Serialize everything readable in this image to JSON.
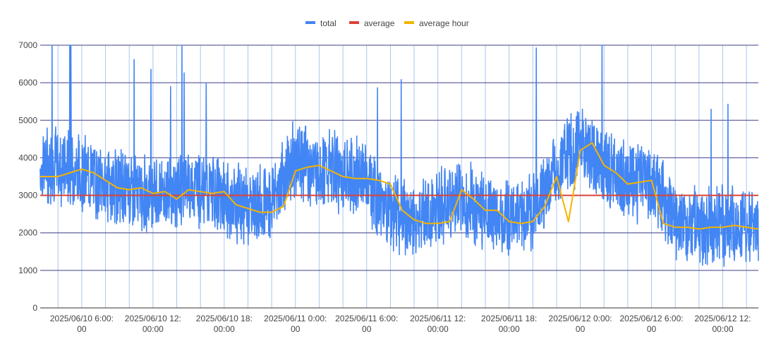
{
  "chart_data": {
    "type": "line",
    "title": "",
    "xlabel": "",
    "ylabel": "",
    "x_range": [
      "2025/06/10 02:30",
      "2025/06/12 15:00"
    ],
    "ylim": [
      0,
      7000
    ],
    "y_ticks": [
      0,
      1000,
      2000,
      3000,
      4000,
      5000,
      6000,
      7000
    ],
    "x_ticks": [
      {
        "at": "2025/06/10 06:00",
        "line1": "2025/06/10 6:00:",
        "line2": "00"
      },
      {
        "at": "2025/06/10 12:00",
        "line1": "2025/06/10 12:",
        "line2": "00:00"
      },
      {
        "at": "2025/06/10 18:00",
        "line1": "2025/06/10 18:",
        "line2": "00:00"
      },
      {
        "at": "2025/06/11 00:00",
        "line1": "2025/06/11 0:00:",
        "line2": "00"
      },
      {
        "at": "2025/06/11 06:00",
        "line1": "2025/06/11 6:00:",
        "line2": "00"
      },
      {
        "at": "2025/06/11 12:00",
        "line1": "2025/06/11 12:",
        "line2": "00:00"
      },
      {
        "at": "2025/06/11 18:00",
        "line1": "2025/06/11 18:",
        "line2": "00:00"
      },
      {
        "at": "2025/06/12 00:00",
        "line1": "2025/06/12 0:00:",
        "line2": "00"
      },
      {
        "at": "2025/06/12 06:00",
        "line1": "2025/06/12 6:00:",
        "line2": "00"
      },
      {
        "at": "2025/06/12 12:00",
        "line1": "2025/06/12 12:",
        "line2": "00:00"
      }
    ],
    "grid": true,
    "legend_position": "top",
    "legend": [
      {
        "name": "total",
        "color": "#4285f4"
      },
      {
        "name": "average",
        "color": "#db4437"
      },
      {
        "name": "average hour",
        "color": "#f4b400"
      }
    ],
    "series": [
      {
        "name": "total",
        "color": "#4285f4",
        "description_values": "noisy, roughly ±900 around the hourly average, with occasional spikes",
        "x": [
          "2025/06/10 02:30",
          "2025/06/10 04:00",
          "2025/06/10 06:00",
          "2025/06/10 08:00",
          "2025/06/10 10:00",
          "2025/06/10 12:00",
          "2025/06/10 14:00",
          "2025/06/10 16:00",
          "2025/06/10 18:00",
          "2025/06/10 20:00",
          "2025/06/10 22:00",
          "2025/06/11 00:00",
          "2025/06/11 02:00",
          "2025/06/11 04:00",
          "2025/06/11 06:00",
          "2025/06/11 08:00",
          "2025/06/11 10:00",
          "2025/06/11 12:00",
          "2025/06/11 14:00",
          "2025/06/11 16:00",
          "2025/06/11 18:00",
          "2025/06/11 20:00",
          "2025/06/11 22:00",
          "2025/06/12 00:00",
          "2025/06/12 02:00",
          "2025/06/12 04:00",
          "2025/06/12 06:00",
          "2025/06/12 08:00",
          "2025/06/12 10:00",
          "2025/06/12 12:00",
          "2025/06/12 14:30"
        ],
        "values": [
          3700,
          3800,
          3600,
          3300,
          3200,
          3000,
          3100,
          3200,
          2900,
          2700,
          2900,
          4000,
          3700,
          3600,
          3400,
          2500,
          2300,
          2700,
          2900,
          2600,
          2400,
          2600,
          3700,
          4400,
          3800,
          3300,
          3400,
          2300,
          2200,
          2200,
          2100
        ]
      },
      {
        "name": "average",
        "color": "#db4437",
        "x": [
          "2025/06/10 02:30",
          "2025/06/12 15:00"
        ],
        "values": [
          3000,
          3000
        ]
      },
      {
        "name": "average hour",
        "color": "#f4b400",
        "x": [
          "2025/06/10 02:30",
          "2025/06/10 04:00",
          "2025/06/10 05:00",
          "2025/06/10 06:00",
          "2025/06/10 07:00",
          "2025/06/10 08:00",
          "2025/06/10 09:00",
          "2025/06/10 10:00",
          "2025/06/10 11:00",
          "2025/06/10 12:00",
          "2025/06/10 13:00",
          "2025/06/10 14:00",
          "2025/06/10 15:00",
          "2025/06/10 16:00",
          "2025/06/10 17:00",
          "2025/06/10 18:00",
          "2025/06/10 19:00",
          "2025/06/10 20:00",
          "2025/06/10 21:00",
          "2025/06/10 22:00",
          "2025/06/10 23:00",
          "2025/06/11 00:00",
          "2025/06/11 01:00",
          "2025/06/11 02:00",
          "2025/06/11 03:00",
          "2025/06/11 04:00",
          "2025/06/11 05:00",
          "2025/06/11 06:00",
          "2025/06/11 07:00",
          "2025/06/11 08:00",
          "2025/06/11 09:00",
          "2025/06/11 10:00",
          "2025/06/11 11:00",
          "2025/06/11 12:00",
          "2025/06/11 13:00",
          "2025/06/11 14:00",
          "2025/06/11 15:00",
          "2025/06/11 16:00",
          "2025/06/11 17:00",
          "2025/06/11 18:00",
          "2025/06/11 19:00",
          "2025/06/11 20:00",
          "2025/06/11 21:00",
          "2025/06/11 22:00",
          "2025/06/11 23:00",
          "2025/06/12 00:00",
          "2025/06/12 01:00",
          "2025/06/12 02:00",
          "2025/06/12 03:00",
          "2025/06/12 04:00",
          "2025/06/12 05:00",
          "2025/06/12 06:00",
          "2025/06/12 07:00",
          "2025/06/12 08:00",
          "2025/06/12 09:00",
          "2025/06/12 10:00",
          "2025/06/12 11:00",
          "2025/06/12 12:00",
          "2025/06/12 13:00",
          "2025/06/12 14:00",
          "2025/06/12 15:00"
        ],
        "values": [
          3500,
          3500,
          3600,
          3700,
          3600,
          3400,
          3200,
          3150,
          3200,
          3050,
          3100,
          2900,
          3150,
          3100,
          3050,
          3100,
          2750,
          2650,
          2550,
          2550,
          2700,
          3650,
          3750,
          3800,
          3650,
          3500,
          3450,
          3450,
          3400,
          3300,
          2600,
          2350,
          2250,
          2250,
          2300,
          3150,
          2900,
          2600,
          2600,
          2300,
          2250,
          2300,
          2700,
          3500,
          2300,
          4200,
          4400,
          3800,
          3600,
          3300,
          3350,
          3400,
          2250,
          2150,
          2150,
          2100,
          2150,
          2150,
          2200,
          2150,
          2100
        ]
      }
    ]
  }
}
